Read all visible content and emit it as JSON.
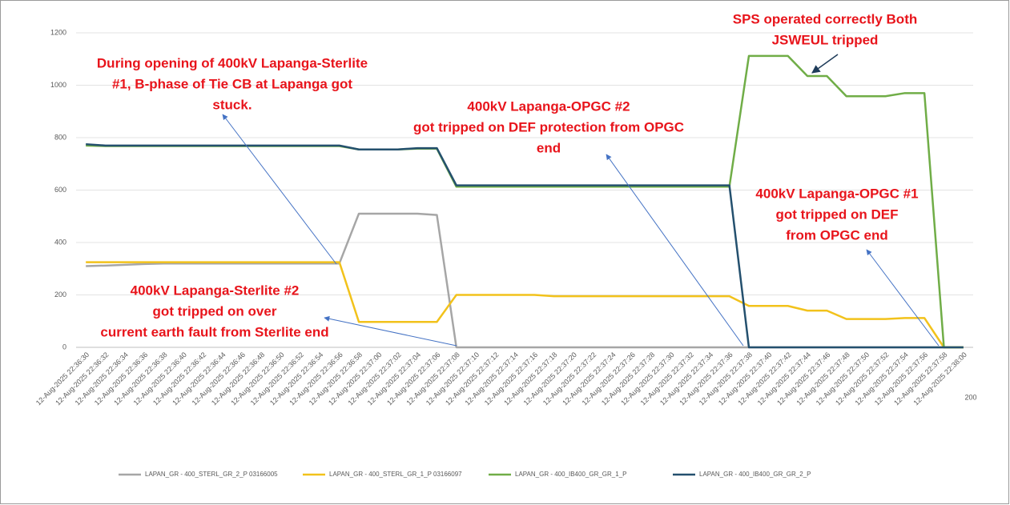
{
  "chart_data": {
    "type": "line",
    "categories": [
      "12-Aug-2025 22:36:30",
      "12-Aug-2025 22:36:32",
      "12-Aug-2025 22:36:34",
      "12-Aug-2025 22:36:36",
      "12-Aug-2025 22:36:38",
      "12-Aug-2025 22:36:40",
      "12-Aug-2025 22:36:42",
      "12-Aug-2025 22:36:44",
      "12-Aug-2025 22:36:46",
      "12-Aug-2025 22:36:48",
      "12-Aug-2025 22:36:50",
      "12-Aug-2025 22:36:52",
      "12-Aug-2025 22:36:54",
      "12-Aug-2025 22:36:56",
      "12-Aug-2025 22:36:58",
      "12-Aug-2025 22:37:00",
      "12-Aug-2025 22:37:02",
      "12-Aug-2025 22:37:04",
      "12-Aug-2025 22:37:06",
      "12-Aug-2025 22:37:08",
      "12-Aug-2025 22:37:10",
      "12-Aug-2025 22:37:12",
      "12-Aug-2025 22:37:14",
      "12-Aug-2025 22:37:16",
      "12-Aug-2025 22:37:18",
      "12-Aug-2025 22:37:20",
      "12-Aug-2025 22:37:22",
      "12-Aug-2025 22:37:24",
      "12-Aug-2025 22:37:26",
      "12-Aug-2025 22:37:28",
      "12-Aug-2025 22:37:30",
      "12-Aug-2025 22:37:32",
      "12-Aug-2025 22:37:34",
      "12-Aug-2025 22:37:36",
      "12-Aug-2025 22:37:38",
      "12-Aug-2025 22:37:40",
      "12-Aug-2025 22:37:42",
      "12-Aug-2025 22:37:44",
      "12-Aug-2025 22:37:46",
      "12-Aug-2025 22:37:48",
      "12-Aug-2025 22:37:50",
      "12-Aug-2025 22:37:52",
      "12-Aug-2025 22:37:54",
      "12-Aug-2025 22:37:56",
      "12-Aug-2025 22:37:58",
      "12-Aug-2025 22:38:00"
    ],
    "series": [
      {
        "name": "LAPAN_GR - 400_STERL_GR_2_P 03166005",
        "color": "#a6a6a6",
        "values": [
          310,
          312,
          315,
          318,
          320,
          320,
          320,
          320,
          320,
          320,
          320,
          320,
          320,
          320,
          510,
          510,
          510,
          510,
          505,
          0,
          0,
          0,
          0,
          0,
          0,
          0,
          0,
          0,
          0,
          0,
          0,
          0,
          0,
          0,
          0,
          0,
          0,
          0,
          0,
          0,
          0,
          0,
          0,
          0,
          0,
          0
        ]
      },
      {
        "name": "LAPAN_GR - 400_STERL_GR_1_P 03166097",
        "color": "#f2c21b",
        "values": [
          325,
          325,
          325,
          325,
          325,
          325,
          325,
          325,
          325,
          325,
          325,
          325,
          325,
          325,
          97,
          97,
          97,
          97,
          97,
          200,
          200,
          200,
          200,
          200,
          195,
          195,
          195,
          195,
          195,
          195,
          195,
          195,
          195,
          195,
          158,
          158,
          158,
          140,
          140,
          108,
          108,
          108,
          112,
          112,
          0,
          0
        ]
      },
      {
        "name": "LAPAN_GR - 400_IB400_GR_GR_1_P",
        "color": "#70ad47",
        "values": [
          770,
          768,
          768,
          768,
          768,
          768,
          768,
          768,
          768,
          768,
          768,
          768,
          768,
          768,
          755,
          755,
          755,
          758,
          758,
          613,
          613,
          613,
          613,
          613,
          613,
          613,
          613,
          613,
          613,
          613,
          613,
          613,
          613,
          613,
          1112,
          1112,
          1112,
          1035,
          1035,
          958,
          958,
          958,
          970,
          970,
          0,
          0
        ]
      },
      {
        "name": "LAPAN_GR - 400_IB400_GR_GR_2_P",
        "color": "#24506e",
        "values": [
          775,
          770,
          770,
          770,
          770,
          770,
          770,
          770,
          770,
          770,
          770,
          770,
          770,
          770,
          755,
          755,
          755,
          760,
          760,
          618,
          618,
          618,
          618,
          618,
          618,
          618,
          618,
          618,
          618,
          618,
          618,
          618,
          618,
          618,
          0,
          0,
          0,
          0,
          0,
          0,
          0,
          0,
          0,
          0,
          0,
          0
        ]
      }
    ],
    "ylim": [
      0,
      1200
    ],
    "yticks": [
      0,
      200,
      400,
      600,
      800,
      1000,
      1200
    ],
    "grid": true,
    "annotations": [
      {
        "lines": [
          "During opening of 400kV Lapanga-Sterlite",
          "#1, B-phase of Tie CB at Lapanga got",
          "stuck."
        ]
      },
      {
        "lines": [
          "400kV Lapanga-OPGC #2",
          "got tripped on DEF protection from OPGC",
          "end"
        ]
      },
      {
        "lines": [
          "SPS operated correctly Both",
          "JSWEUL tripped"
        ]
      },
      {
        "lines": [
          "400kV Lapanga-OPGC #1",
          "got tripped on DEF",
          "from OPGC end"
        ]
      },
      {
        "lines": [
          "400kV Lapanga-Sterlite #2",
          "got tripped on over",
          "current earth fault from Sterlite end"
        ]
      }
    ],
    "stray_label": "200"
  }
}
